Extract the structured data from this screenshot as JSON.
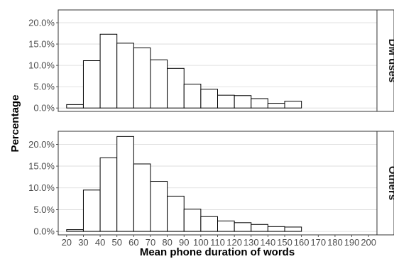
{
  "chart_data": {
    "type": "bar",
    "xlabel": "Mean phone duration of words",
    "ylabel": "Percentage",
    "x_ticks": [
      "20",
      "30",
      "40",
      "50",
      "60",
      "70",
      "80",
      "90",
      "100",
      "110",
      "120",
      "130",
      "140",
      "150",
      "160",
      "170",
      "180",
      "190",
      "200"
    ],
    "bin_edges": [
      20,
      30,
      40,
      50,
      60,
      70,
      80,
      90,
      100,
      110,
      120,
      130,
      140,
      150,
      160,
      170,
      180,
      190,
      200
    ],
    "xlim": [
      15,
      205
    ],
    "grid": true,
    "panels": [
      {
        "strip": "DM uses",
        "y_ticks": [
          "0.0%",
          "5.0%",
          "10.0%",
          "15.0%",
          "20.0%"
        ],
        "y_tick_values": [
          0,
          5,
          10,
          15,
          20
        ],
        "ylim": [
          -0.8,
          23
        ],
        "values": [
          0.8,
          11.1,
          17.3,
          15.2,
          14.1,
          11.3,
          9.3,
          5.6,
          4.4,
          3.0,
          2.9,
          2.2,
          1.1,
          1.6
        ]
      },
      {
        "strip": "Others",
        "y_ticks": [
          "0.0%",
          "5.0%",
          "10.0%",
          "15.0%",
          "20.0%"
        ],
        "y_tick_values": [
          0,
          5,
          10,
          15,
          20
        ],
        "ylim": [
          -0.8,
          23
        ],
        "values": [
          0.4,
          9.5,
          16.9,
          21.8,
          15.5,
          11.5,
          8.1,
          5.1,
          3.4,
          2.4,
          2.0,
          1.6,
          1.1,
          1.0
        ]
      }
    ]
  }
}
